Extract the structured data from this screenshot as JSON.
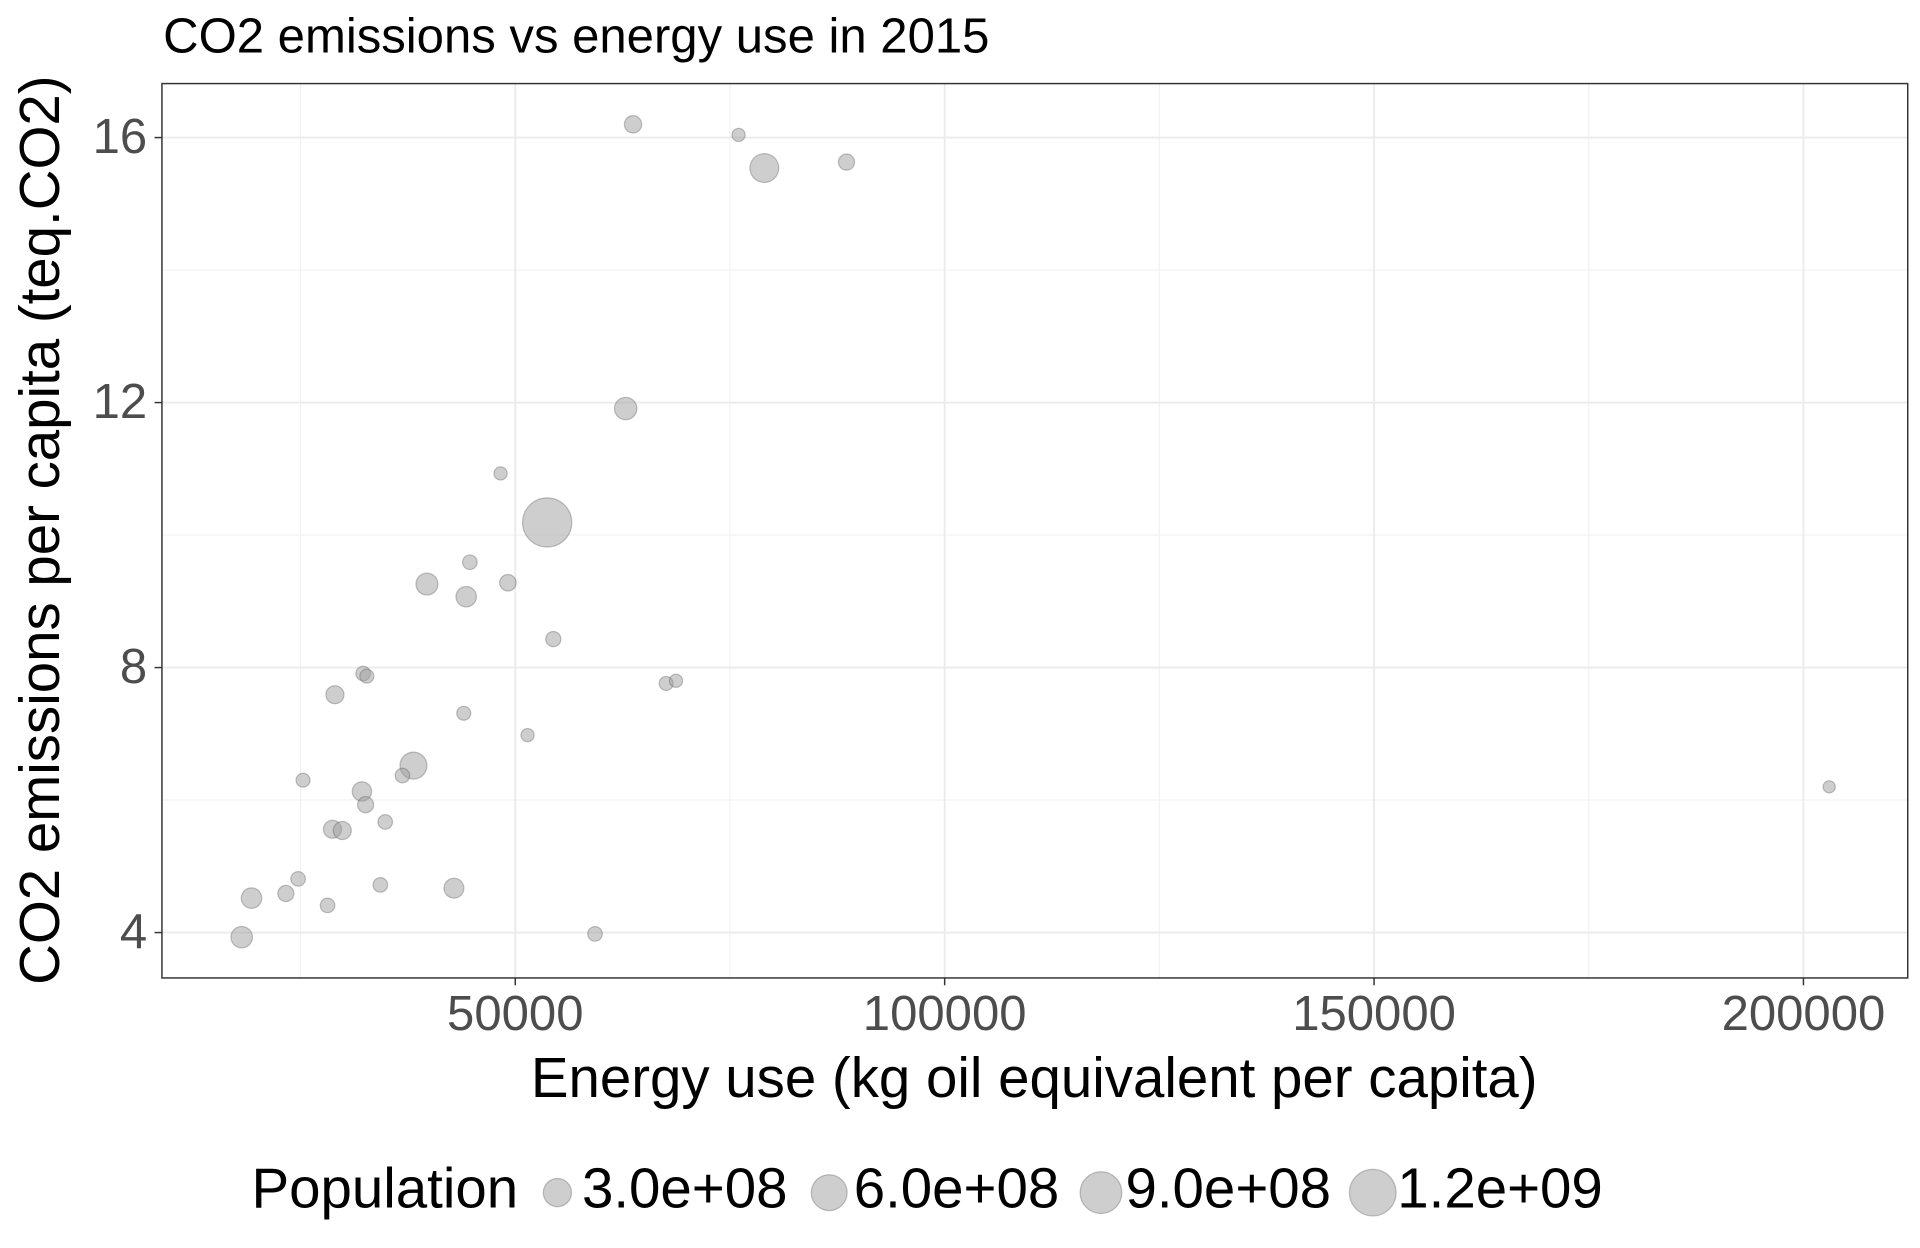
{
  "chart_data": {
    "type": "scatter",
    "title": "CO2 emissions vs energy use in 2015",
    "xlabel": "Energy use (kg oil equivalent per capita)",
    "ylabel": "CO2 emissions per capita (teq.CO2)",
    "x": [
      63714,
      76000,
      79000,
      88571,
      62857,
      48286,
      53714,
      44714,
      39714,
      44286,
      49143,
      54429,
      32286,
      32714,
      29000,
      67571,
      68714,
      44000,
      51429,
      38143,
      36857,
      25286,
      32143,
      32571,
      34857,
      28714,
      29857,
      203000,
      24714,
      23286,
      19286,
      28143,
      34286,
      42857,
      18143,
      59286
    ],
    "values": [
      16.2,
      16.04,
      15.54,
      15.63,
      11.91,
      10.93,
      10.19,
      9.59,
      9.26,
      9.07,
      9.28,
      8.43,
      7.91,
      7.87,
      7.59,
      7.76,
      7.8,
      7.31,
      6.98,
      6.52,
      6.37,
      6.3,
      6.13,
      5.93,
      5.67,
      5.56,
      5.54,
      6.2,
      4.81,
      4.59,
      4.52,
      4.41,
      4.72,
      4.67,
      3.93,
      3.98
    ],
    "sizes": [
      50000000,
      10000000,
      320000000,
      35000000,
      140000000,
      10000000,
      1370000000,
      20000000,
      130000000,
      100000000,
      40000000,
      25000000,
      20000000,
      15000000,
      60000000,
      15000000,
      10000000,
      15000000,
      10000000,
      260000000,
      20000000,
      15000000,
      80000000,
      35000000,
      20000000,
      60000000,
      60000000,
      5000000,
      20000000,
      35000000,
      100000000,
      20000000,
      20000000,
      90000000,
      120000000,
      20000000
    ],
    "color": "#9e9e9e",
    "alpha": 0.5,
    "xlim": [
      8857,
      212143
    ],
    "ylim": [
      3.315,
      16.815
    ],
    "xticks": [
      50000,
      100000,
      150000,
      200000
    ],
    "yticks": [
      4,
      8,
      12,
      16
    ],
    "x_minor_grid": [
      25000,
      75000,
      125000,
      175000
    ],
    "y_minor_grid": [
      6,
      10,
      14
    ],
    "grid": true,
    "size_legend": {
      "title": "Population",
      "position": "bottom",
      "breaks": [
        {
          "value": 300000000,
          "label": "3.0e+08"
        },
        {
          "value": 600000000,
          "label": "6.0e+08"
        },
        {
          "value": 900000000,
          "label": "9.0e+08"
        },
        {
          "value": 1200000000,
          "label": "1.2e+09"
        }
      ]
    }
  }
}
